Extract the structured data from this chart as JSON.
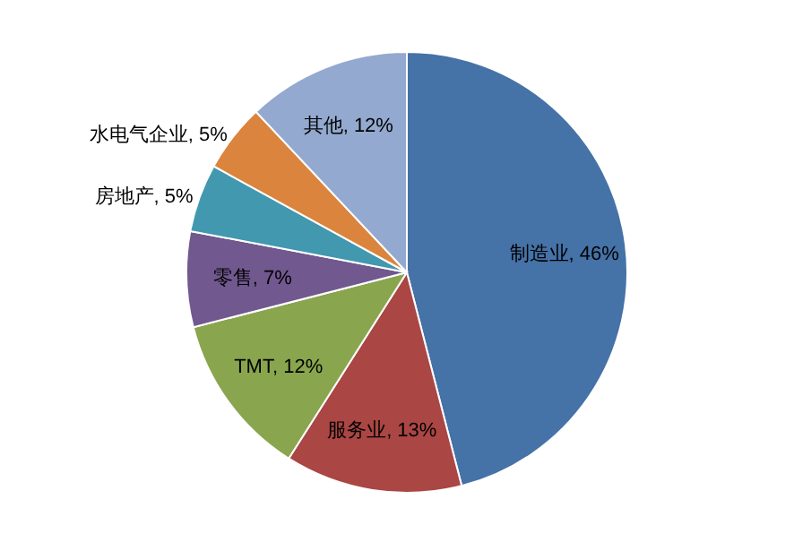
{
  "chart_data": {
    "type": "pie",
    "categories": [
      "制造业",
      "服务业",
      "TMT",
      "零售",
      "房地产",
      "水电气企业",
      "其他"
    ],
    "values": [
      46,
      13,
      12,
      7,
      5,
      5,
      12
    ],
    "colors": [
      "#4572a7",
      "#aa4643",
      "#89a54e",
      "#71588f",
      "#4198af",
      "#db843d",
      "#93a9cf"
    ],
    "value_labels": [
      ", 46%",
      ", 13%",
      ", 12%",
      ", 7%",
      ", 5%",
      ", 5%",
      ", 12%"
    ]
  }
}
